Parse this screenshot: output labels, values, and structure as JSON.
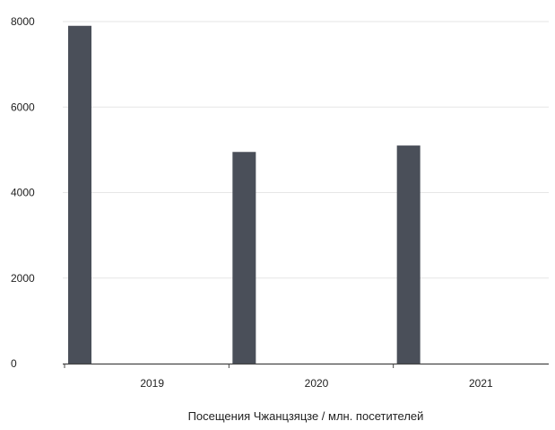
{
  "chart_data": {
    "type": "bar",
    "categories": [
      "2019",
      "2020",
      "2021"
    ],
    "values": [
      7900,
      4950,
      5100
    ],
    "xlabel": "Посещения Чжанцзяцзе / млн. посетителей",
    "ylabel": "",
    "ylim": [
      0,
      8000
    ],
    "yticks": [
      "0",
      "2000",
      "4000",
      "6000",
      "8000"
    ],
    "grid": true,
    "legend": "none",
    "colors": {
      "bar": "#4a4f59",
      "grid": "#e6e6e6",
      "axis": "#444444",
      "text": "#222222"
    }
  }
}
